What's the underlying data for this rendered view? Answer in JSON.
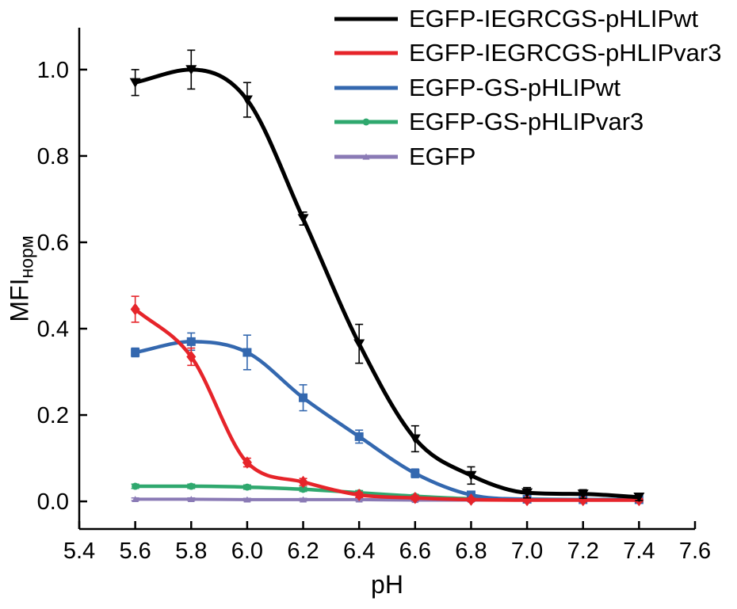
{
  "figure": {
    "background": "#ffffff",
    "ylabel_base": "MFI",
    "ylabel_sub": "норм"
  },
  "chart_data": {
    "type": "line",
    "title": "",
    "xlabel": "pH",
    "ylabel": "MFI_норм",
    "xlim": [
      5.4,
      7.6
    ],
    "ylim": [
      -0.064,
      1.097
    ],
    "xticks": [
      5.4,
      5.6,
      5.8,
      6.0,
      6.2,
      6.4,
      6.6,
      6.8,
      7.0,
      7.2,
      7.4,
      7.6
    ],
    "yticks": [
      0.0,
      0.2,
      0.4,
      0.6,
      0.8,
      1.0
    ],
    "grid": false,
    "legend_position": "top-right",
    "x": [
      5.6,
      5.8,
      6.0,
      6.2,
      6.4,
      6.6,
      6.8,
      7.0,
      7.2,
      7.4
    ],
    "series": [
      {
        "name": "EGFP-IEGRCGS-pHLIPwt",
        "color": "#000000",
        "marker": "triangle-down",
        "marker_size": 7,
        "line_width": 5,
        "legend_marker": false,
        "values": [
          0.97,
          1.0,
          0.93,
          0.655,
          0.365,
          0.145,
          0.06,
          0.02,
          0.017,
          0.01
        ],
        "errors": [
          0.03,
          0.045,
          0.04,
          0.015,
          0.045,
          0.03,
          0.02,
          0.012,
          0.01,
          0.008
        ]
      },
      {
        "name": "EGFP-IEGRCGS-pHLIPvar3",
        "color": "#e6242a",
        "marker": "diamond",
        "marker_size": 6,
        "line_width": 4.5,
        "legend_marker": false,
        "values": [
          0.445,
          0.335,
          0.09,
          0.045,
          0.015,
          0.008,
          0.004,
          0.003,
          0.003,
          0.003
        ],
        "errors": [
          0.03,
          0.02,
          0.01,
          0.008,
          0.006,
          0.005,
          0.004,
          0.004,
          0.004,
          0.004
        ]
      },
      {
        "name": "EGFP-GS-pHLIPwt",
        "color": "#3468af",
        "marker": "square",
        "marker_size": 5.5,
        "line_width": 4.5,
        "legend_marker": false,
        "values": [
          0.345,
          0.37,
          0.345,
          0.24,
          0.15,
          0.065,
          0.015,
          0.005,
          0.004,
          0.004
        ],
        "errors": [
          0.01,
          0.02,
          0.04,
          0.03,
          0.015,
          0.01,
          0.006,
          0.004,
          0.003,
          0.003
        ]
      },
      {
        "name": "EGFP-GS-pHLIPvar3",
        "color": "#2fa86e",
        "marker": "circle",
        "marker_size": 4.5,
        "line_width": 4.5,
        "legend_marker": true,
        "values": [
          0.035,
          0.035,
          0.033,
          0.028,
          0.02,
          0.012,
          0.006,
          0.005,
          0.004,
          0.004
        ],
        "errors": [
          0.005,
          0.005,
          0.005,
          0.005,
          0.005,
          0.004,
          0.004,
          0.003,
          0.003,
          0.003
        ]
      },
      {
        "name": "EGFP",
        "color": "#8a7ab5",
        "marker": "triangle-up",
        "marker_size": 4.5,
        "line_width": 4,
        "legend_marker": true,
        "values": [
          0.005,
          0.005,
          0.004,
          0.004,
          0.004,
          0.003,
          0.003,
          0.003,
          0.003,
          0.003
        ],
        "errors": [
          0.003,
          0.003,
          0.003,
          0.003,
          0.003,
          0.003,
          0.003,
          0.003,
          0.003,
          0.003
        ]
      }
    ]
  }
}
